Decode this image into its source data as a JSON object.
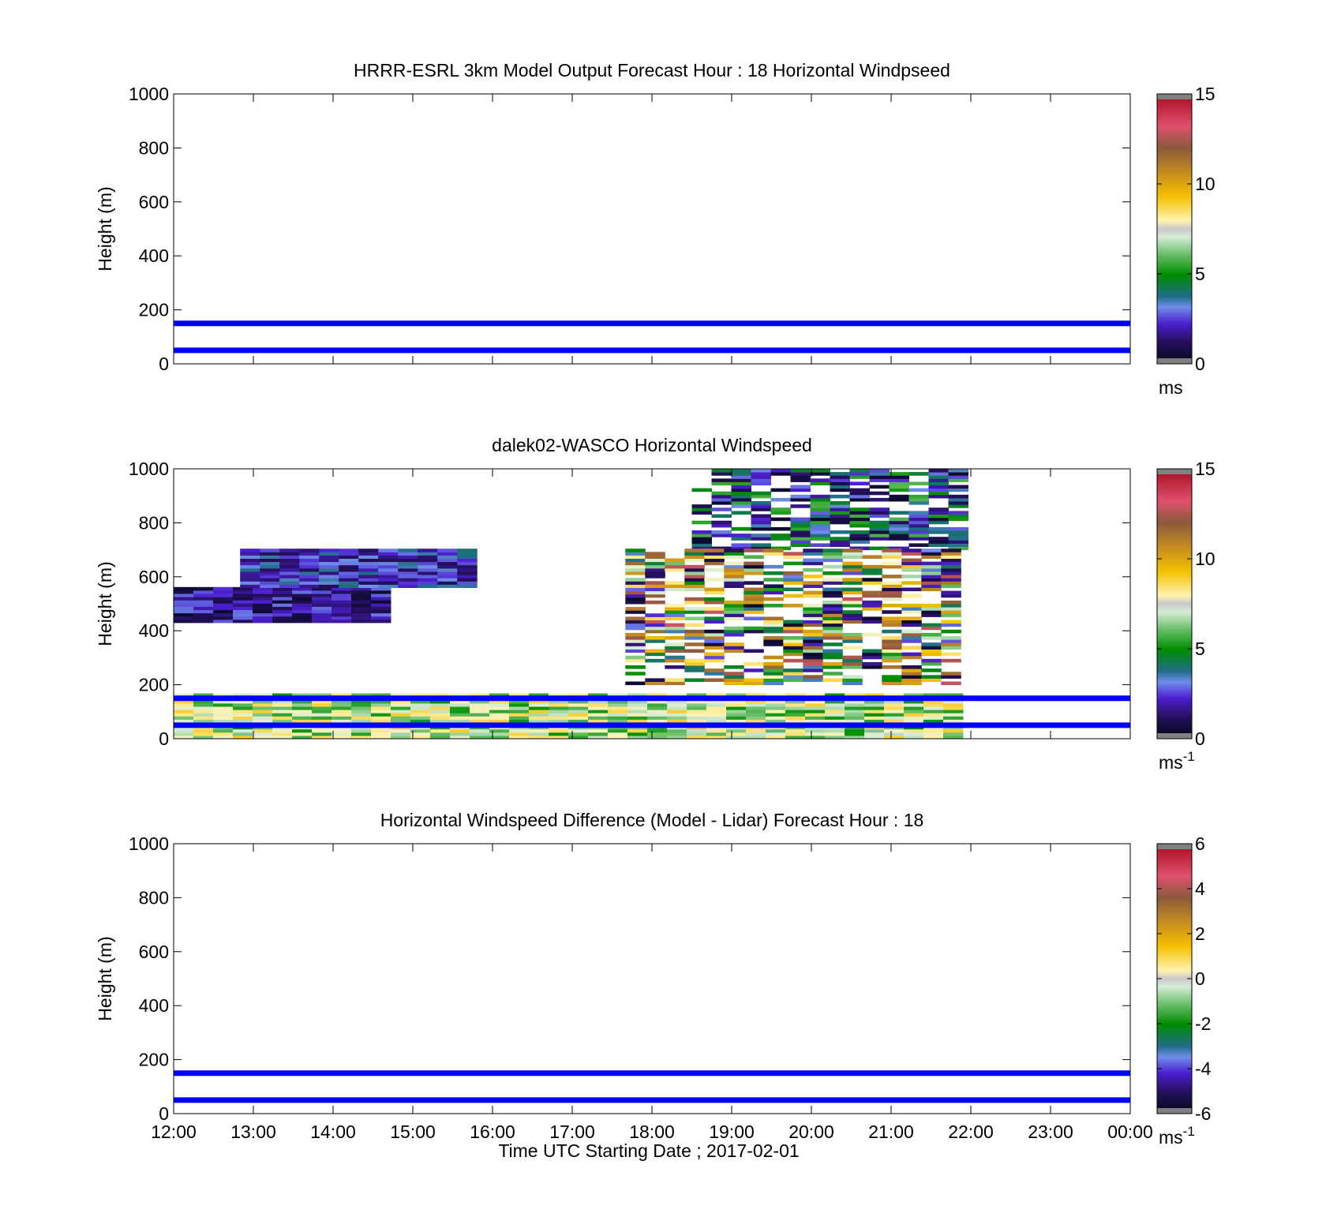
{
  "figure": {
    "xlabel": "Time UTC  Starting Date ; 2017-02-01",
    "line_color": "#0000ff"
  },
  "x_ticks": [
    "12:00",
    "13:00",
    "14:00",
    "15:00",
    "16:00",
    "17:00",
    "18:00",
    "19:00",
    "20:00",
    "21:00",
    "22:00",
    "23:00",
    "00:00"
  ],
  "chart_data": [
    {
      "type": "heatmap",
      "title": "HRRR-ESRL 3km Model Output   Forecast Hour : 18 Horizontal Windpseed",
      "ylabel": "Height (m)",
      "ylim": [
        0,
        1000
      ],
      "yticks": [
        "0",
        "200",
        "400",
        "600",
        "800",
        "1000"
      ],
      "xlim": [
        "12:00",
        "00:00"
      ],
      "reference_lines_m": [
        50,
        150
      ],
      "colorbar": {
        "ticks": [
          "0",
          "5",
          "10",
          "15"
        ],
        "range": [
          0,
          15
        ],
        "unit": "ms",
        "unit_sup": ""
      },
      "data_note": ""
    },
    {
      "type": "heatmap",
      "title": "dalek02-WASCO  Horizontal Windspeed",
      "ylabel": "Height (m)",
      "ylim": [
        0,
        1000
      ],
      "yticks": [
        "0",
        "200",
        "400",
        "600",
        "800",
        "1000"
      ],
      "xlim": [
        "12:00",
        "00:00"
      ],
      "data_xlim": [
        "12:00",
        "21:50"
      ],
      "reference_lines_m": [
        50,
        150
      ],
      "colorbar": {
        "ticks": [
          "0",
          "5",
          "10",
          "15"
        ],
        "range": [
          0,
          15
        ],
        "unit": "ms",
        "unit_sup": "-1"
      },
      "data_regions": [
        {
          "x": [
            "12:00",
            "21:50"
          ],
          "y": [
            0,
            160
          ],
          "value_range": [
            5,
            9
          ]
        },
        {
          "x": [
            "12:00",
            "14:30"
          ],
          "y": [
            430,
            560
          ],
          "value_range": [
            0,
            3
          ]
        },
        {
          "x": [
            "12:50",
            "15:40"
          ],
          "y": [
            560,
            700
          ],
          "value_range": [
            1,
            4
          ]
        },
        {
          "x": [
            "18:30",
            "21:50"
          ],
          "y": [
            700,
            1000
          ],
          "value_range": [
            0,
            6
          ]
        },
        {
          "x": [
            "17:40",
            "21:50"
          ],
          "y": [
            200,
            700
          ],
          "value_range": [
            0,
            13
          ]
        }
      ]
    },
    {
      "type": "heatmap",
      "title": "Horizontal Windspeed Difference (Model - Lidar) Forecast Hour : 18",
      "ylabel": "Height (m)",
      "ylim": [
        0,
        1000
      ],
      "yticks": [
        "0",
        "200",
        "400",
        "600",
        "800",
        "1000"
      ],
      "xlim": [
        "12:00",
        "00:00"
      ],
      "reference_lines_m": [
        50,
        150
      ],
      "colorbar": {
        "ticks": [
          "-6",
          "-4",
          "-2",
          "0",
          "2",
          "4",
          "6"
        ],
        "range": [
          -6,
          6
        ],
        "unit": "ms",
        "unit_sup": "-1"
      },
      "data_note": ""
    }
  ]
}
